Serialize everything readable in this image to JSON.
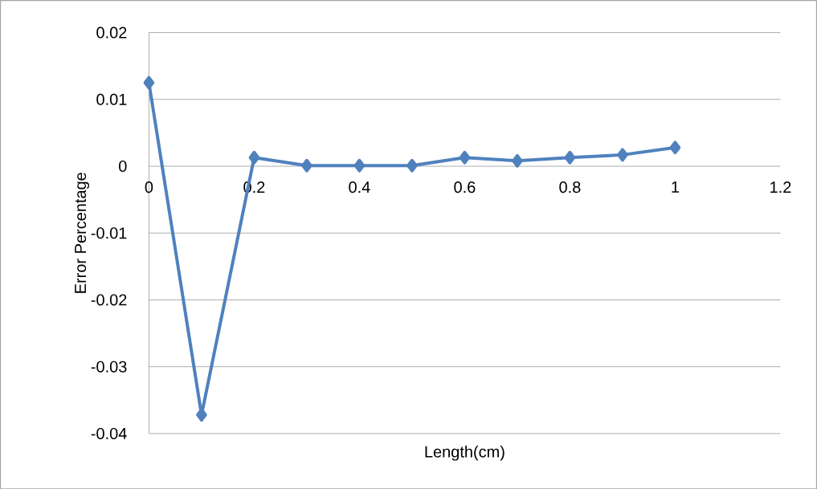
{
  "chart_data": {
    "type": "line",
    "xlabel": "Length(cm)",
    "ylabel": "Error Percentage",
    "x": [
      0,
      0.1,
      0.2,
      0.3,
      0.4,
      0.5,
      0.6,
      0.7,
      0.8,
      0.9,
      1
    ],
    "series": [
      {
        "color": "#4f81bd",
        "values": [
          0.0125,
          -0.0372,
          0.0013,
          0.0001,
          0.0001,
          0.0001,
          0.0013,
          0.0008,
          0.0013,
          0.0017,
          0.0028
        ]
      }
    ],
    "xlim": [
      0,
      1.2
    ],
    "ylim": [
      -0.04,
      0.02
    ],
    "xticks": [
      0,
      0.2,
      0.4,
      0.6,
      0.8,
      1,
      1.2
    ],
    "yticks": [
      -0.04,
      -0.03,
      -0.02,
      -0.01,
      0,
      0.01,
      0.02
    ],
    "grid": "y",
    "marker": "diamond",
    "line_style": "solid"
  }
}
